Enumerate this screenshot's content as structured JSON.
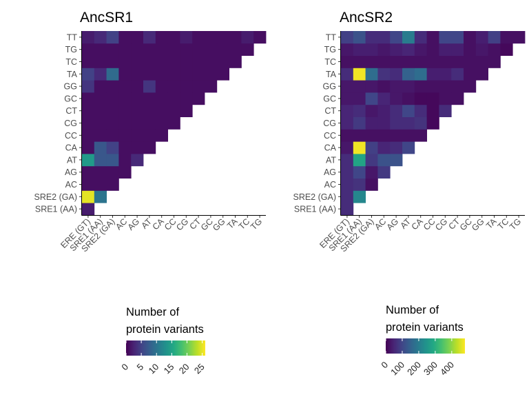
{
  "chart_data": [
    {
      "type": "heatmap",
      "title": "AncSR1",
      "x_categories": [
        "ERE (GT)",
        "SRE1 (AA)",
        "SRE2 (GA)",
        "AC",
        "AG",
        "AT",
        "CA",
        "CC",
        "CG",
        "CT",
        "GC",
        "GG",
        "TA",
        "TC",
        "TG"
      ],
      "y_categories": [
        "SRE1 (AA)",
        "SRE2 (GA)",
        "AC",
        "AG",
        "AT",
        "CA",
        "CC",
        "CG",
        "CT",
        "GC",
        "GG",
        "TA",
        "TC",
        "TG",
        "TT"
      ],
      "values": [
        [
          2
        ],
        [
          25,
          10
        ],
        [
          1,
          1,
          1
        ],
        [
          1,
          1,
          1,
          1
        ],
        [
          14,
          7,
          7,
          1,
          3
        ],
        [
          1,
          7,
          5,
          1,
          1,
          1
        ],
        [
          1,
          1,
          1,
          1,
          1,
          1,
          1
        ],
        [
          1,
          1,
          1,
          1,
          1,
          1,
          1,
          1
        ],
        [
          1,
          1,
          1,
          1,
          1,
          1,
          1,
          1,
          1
        ],
        [
          1,
          1,
          1,
          1,
          1,
          1,
          1,
          1,
          1,
          1
        ],
        [
          4,
          1,
          1,
          1,
          1,
          4,
          1,
          1,
          1,
          1,
          1
        ],
        [
          5,
          3,
          9,
          1,
          1,
          1,
          1,
          1,
          1,
          1,
          1,
          1
        ],
        [
          1,
          1,
          1,
          1,
          1,
          1,
          1,
          1,
          1,
          1,
          1,
          1,
          1
        ],
        [
          1,
          1,
          1,
          1,
          1,
          1,
          1,
          1,
          1,
          1,
          1,
          1,
          1,
          1
        ],
        [
          2,
          3,
          5,
          1,
          1,
          3,
          1,
          1,
          2,
          1,
          1,
          1,
          1,
          2,
          1
        ]
      ],
      "color_scale": {
        "name": "viridis",
        "title": "Number of\nprotein variants",
        "range": [
          0,
          26
        ],
        "ticks": [
          0,
          5,
          10,
          15,
          20,
          25
        ]
      }
    },
    {
      "type": "heatmap",
      "title": "AncSR2",
      "x_categories": [
        "ERE (GT)",
        "SRE1 (AA)",
        "SRE2 (GA)",
        "AC",
        "AG",
        "AT",
        "CA",
        "CC",
        "CG",
        "CT",
        "GC",
        "GG",
        "TA",
        "TC",
        "TG"
      ],
      "y_categories": [
        "SRE1 (AA)",
        "SRE2 (GA)",
        "AC",
        "AG",
        "AT",
        "CA",
        "CC",
        "CG",
        "CT",
        "GC",
        "GG",
        "TA",
        "TC",
        "TG",
        "TT"
      ],
      "values": [
        [
          60
        ],
        [
          60,
          220
        ],
        [
          60,
          70,
          20
        ],
        [
          60,
          100,
          30,
          80
        ],
        [
          60,
          280,
          80,
          120,
          120
        ],
        [
          30,
          470,
          90,
          50,
          60,
          100
        ],
        [
          20,
          20,
          20,
          20,
          20,
          20,
          20
        ],
        [
          50,
          80,
          40,
          40,
          60,
          60,
          70,
          10
        ],
        [
          50,
          60,
          30,
          40,
          60,
          100,
          60,
          10,
          60
        ],
        [
          30,
          30,
          100,
          50,
          30,
          20,
          10,
          10,
          20,
          20
        ],
        [
          30,
          30,
          30,
          20,
          30,
          30,
          20,
          20,
          20,
          20,
          20
        ],
        [
          60,
          470,
          170,
          70,
          60,
          150,
          170,
          40,
          40,
          60,
          20,
          20
        ],
        [
          20,
          20,
          20,
          20,
          20,
          20,
          20,
          20,
          20,
          20,
          20,
          20,
          20
        ],
        [
          30,
          40,
          40,
          30,
          40,
          50,
          30,
          20,
          40,
          40,
          20,
          30,
          20,
          10
        ],
        [
          90,
          120,
          60,
          60,
          100,
          200,
          60,
          20,
          100,
          100,
          20,
          40,
          90,
          20,
          20
        ]
      ],
      "color_scale": {
        "name": "viridis",
        "title": "Number of\nprotein variants",
        "range": [
          0,
          480
        ],
        "ticks": [
          0,
          100,
          200,
          300,
          400
        ]
      }
    }
  ]
}
